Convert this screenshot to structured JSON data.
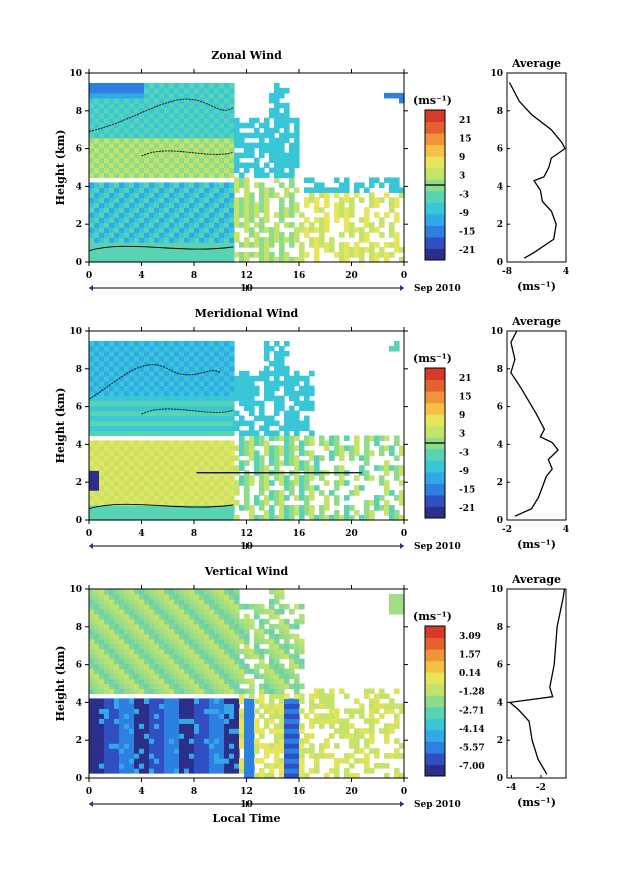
{
  "chart_data": [
    {
      "type": "heatmap",
      "title": "Zonal Wind",
      "ylabel": "Height (km)",
      "ylim": [
        0,
        10
      ],
      "yticks": [
        "0",
        "2",
        "4",
        "6",
        "8",
        "10"
      ],
      "xlim": [
        0,
        24
      ],
      "xticks": [
        "0",
        "4",
        "8",
        "12",
        "16",
        "20",
        "0"
      ],
      "date_marker": "10",
      "date_label": "Sep 2010",
      "colorbar": {
        "unit": "(ms⁻¹)",
        "labels": [
          "21",
          "15",
          "9",
          "3",
          "-3",
          "-9",
          "-15",
          "-21"
        ]
      },
      "average": {
        "title": "Average",
        "xlabel": "(ms⁻¹)",
        "xticks": [
          "-8",
          "4"
        ],
        "yticks": [
          "0",
          "2",
          "4",
          "6",
          "8",
          "10"
        ],
        "xlim": [
          -8,
          4
        ],
        "profile": [
          [
            -4.5,
            0.2
          ],
          [
            -2.5,
            0.5
          ],
          [
            1.5,
            1.2
          ],
          [
            2.0,
            2.0
          ],
          [
            1.0,
            2.7
          ],
          [
            -0.8,
            3.2
          ],
          [
            -1.2,
            3.8
          ],
          [
            -2.5,
            4.3
          ],
          [
            -0.5,
            4.5
          ],
          [
            0.5,
            5.0
          ],
          [
            1.0,
            5.5
          ],
          [
            3.8,
            6.0
          ],
          [
            3.2,
            6.3
          ],
          [
            1.0,
            7.0
          ],
          [
            -3.0,
            7.8
          ],
          [
            -5.5,
            8.5
          ],
          [
            -7.5,
            9.5
          ]
        ]
      }
    },
    {
      "type": "heatmap",
      "title": "Meridional Wind",
      "ylabel": "Height (km)",
      "ylim": [
        0,
        10
      ],
      "yticks": [
        "0",
        "2",
        "4",
        "6",
        "8",
        "10"
      ],
      "xlim": [
        0,
        24
      ],
      "xticks": [
        "0",
        "4",
        "8",
        "12",
        "16",
        "20",
        "0"
      ],
      "date_marker": "10",
      "date_label": "Sep 2010",
      "colorbar": {
        "unit": "(ms⁻¹)",
        "labels": [
          "21",
          "15",
          "9",
          "3",
          "-3",
          "-9",
          "-15",
          "-21"
        ]
      },
      "average": {
        "title": "Average",
        "xlabel": "(ms⁻¹)",
        "xticks": [
          "-2",
          "4"
        ],
        "yticks": [
          "0",
          "2",
          "4",
          "6",
          "8",
          "10"
        ],
        "xlim": [
          -2,
          4
        ],
        "profile": [
          [
            -1.2,
            0.2
          ],
          [
            0.5,
            0.6
          ],
          [
            1.2,
            1.2
          ],
          [
            2.0,
            2.3
          ],
          [
            2.6,
            2.7
          ],
          [
            2.2,
            3.2
          ],
          [
            3.2,
            3.7
          ],
          [
            2.6,
            4.1
          ],
          [
            1.4,
            4.4
          ],
          [
            1.8,
            4.8
          ],
          [
            1.0,
            5.6
          ],
          [
            -0.6,
            7.0
          ],
          [
            -1.6,
            7.8
          ],
          [
            -1.2,
            8.5
          ],
          [
            -1.6,
            9.4
          ],
          [
            -1.0,
            10.0
          ]
        ]
      }
    },
    {
      "type": "heatmap",
      "title": "Vertical Wind",
      "ylabel": "Height (km)",
      "xlabel": "Local Time",
      "ylim": [
        0,
        10
      ],
      "yticks": [
        "0",
        "2",
        "4",
        "6",
        "8",
        "10"
      ],
      "xlim": [
        0,
        24
      ],
      "xticks": [
        "0",
        "4",
        "8",
        "12",
        "16",
        "20",
        "0"
      ],
      "date_marker": "10",
      "date_label": "Sep 2010",
      "colorbar": {
        "unit": "(ms⁻¹)",
        "labels": [
          "3.09",
          "1.57",
          "0.14",
          "-1.28",
          "-2.71",
          "-4.14",
          "-5.57",
          "-7.00"
        ]
      },
      "average": {
        "title": "Average",
        "xlabel": "(ms⁻¹)",
        "xticks": [
          "-4",
          "-2"
        ],
        "yticks": [
          "0",
          "2",
          "4",
          "6",
          "8",
          "10"
        ],
        "xlim": [
          -4.3,
          -0.3
        ],
        "profile": [
          [
            -1.6,
            0.2
          ],
          [
            -2.2,
            1.0
          ],
          [
            -2.6,
            2.0
          ],
          [
            -2.8,
            3.0
          ],
          [
            -3.5,
            3.6
          ],
          [
            -4.1,
            4.0
          ],
          [
            -1.2,
            4.3
          ],
          [
            -1.4,
            4.8
          ],
          [
            -1.1,
            6.0
          ],
          [
            -0.9,
            8.0
          ],
          [
            -0.5,
            9.5
          ],
          [
            -0.4,
            10.0
          ]
        ]
      }
    }
  ]
}
